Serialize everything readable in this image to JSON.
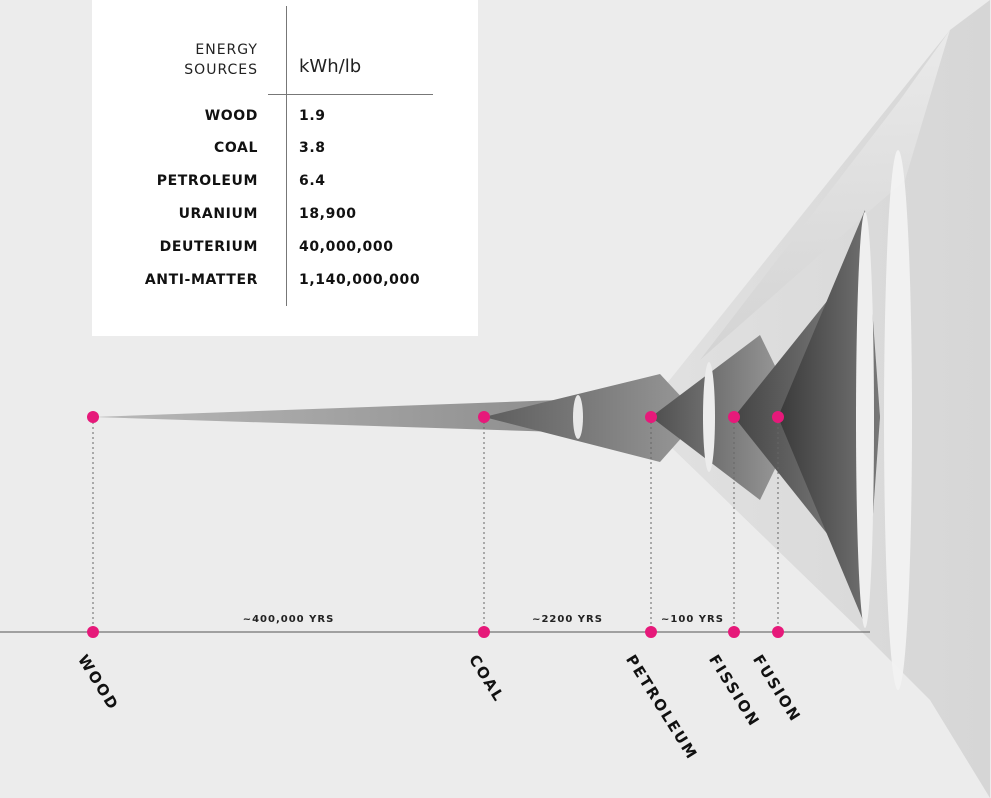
{
  "table": {
    "header_left": [
      "ENERGY",
      "SOURCES"
    ],
    "header_right": "kWh/lb",
    "rows": [
      {
        "name": "WOOD",
        "value": "1.9"
      },
      {
        "name": "COAL",
        "value": "3.8"
      },
      {
        "name": "PETROLEUM",
        "value": "6.4"
      },
      {
        "name": "URANIUM",
        "value": "18,900"
      },
      {
        "name": "DEUTERIUM",
        "value": "40,000,000"
      },
      {
        "name": "ANTI-MATTER",
        "value": "1,140,000,000"
      }
    ]
  },
  "chart_data": {
    "type": "table",
    "columns": [
      "ENERGY SOURCES",
      "kWh/lb"
    ],
    "rows": [
      [
        "WOOD",
        1.9
      ],
      [
        "COAL",
        3.8
      ],
      [
        "PETROLEUM",
        6.4
      ],
      [
        "URANIUM",
        18900
      ],
      [
        "DEUTERIUM",
        40000000
      ],
      [
        "ANTI-MATTER",
        1140000000
      ]
    ],
    "timeline": {
      "milestones": [
        "WOOD",
        "COAL",
        "PETROLEUM",
        "FISSION",
        "FUSION"
      ],
      "intervals": [
        "~400,000 YRS",
        "~2200 YRS",
        "~100 YRS"
      ]
    }
  },
  "colors": {
    "dot": "#e6197a",
    "axis": "#555555",
    "background": "#ececec"
  }
}
